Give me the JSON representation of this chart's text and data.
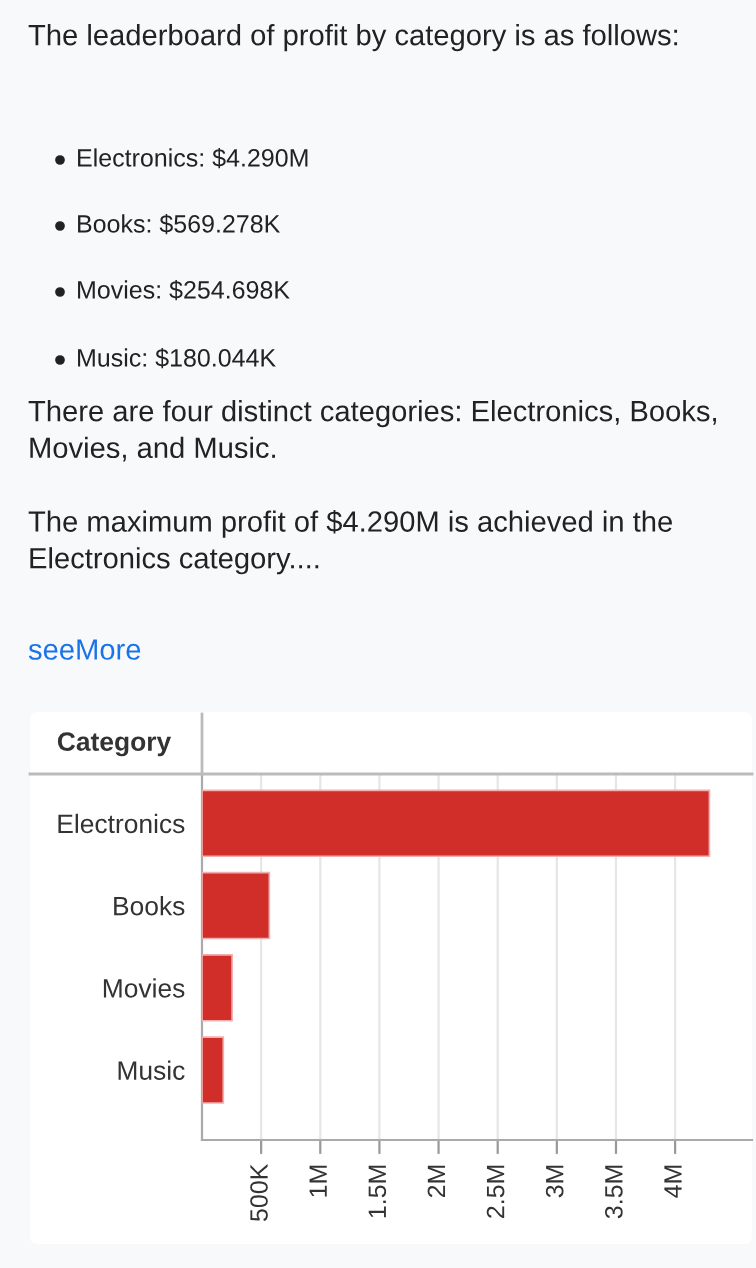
{
  "chart_data": {
    "type": "bar",
    "orientation": "horizontal",
    "title": "The leaderboard of profit by category is as follows:",
    "annotations": [
      "Electronics: $4.290M",
      "Books: $569.278K",
      "Movies: $254.698K",
      "Music: $180.044K",
      "There are four distinct categories: Electronics, Books, Movies, and Music.",
      "The maximum profit of $4.290M is achieved in the Electronics category....",
      "seeMore"
    ],
    "ylabel": "Category",
    "categories": [
      "Electronics",
      "Books",
      "Movies",
      "Music"
    ],
    "values": [
      4290000,
      569278,
      254698,
      180044
    ],
    "color": "#d12d29",
    "xlim": [
      0,
      4650000
    ],
    "xticks": [
      {
        "value": 500000,
        "label": "500K"
      },
      {
        "value": 1000000,
        "label": "1M"
      },
      {
        "value": 1500000,
        "label": "1.5M"
      },
      {
        "value": 2000000,
        "label": "2M"
      },
      {
        "value": 2500000,
        "label": "2.5M"
      },
      {
        "value": 3000000,
        "label": "3M"
      },
      {
        "value": 3500000,
        "label": "3.5M"
      },
      {
        "value": 4000000,
        "label": "4M"
      }
    ],
    "grid": "x"
  }
}
